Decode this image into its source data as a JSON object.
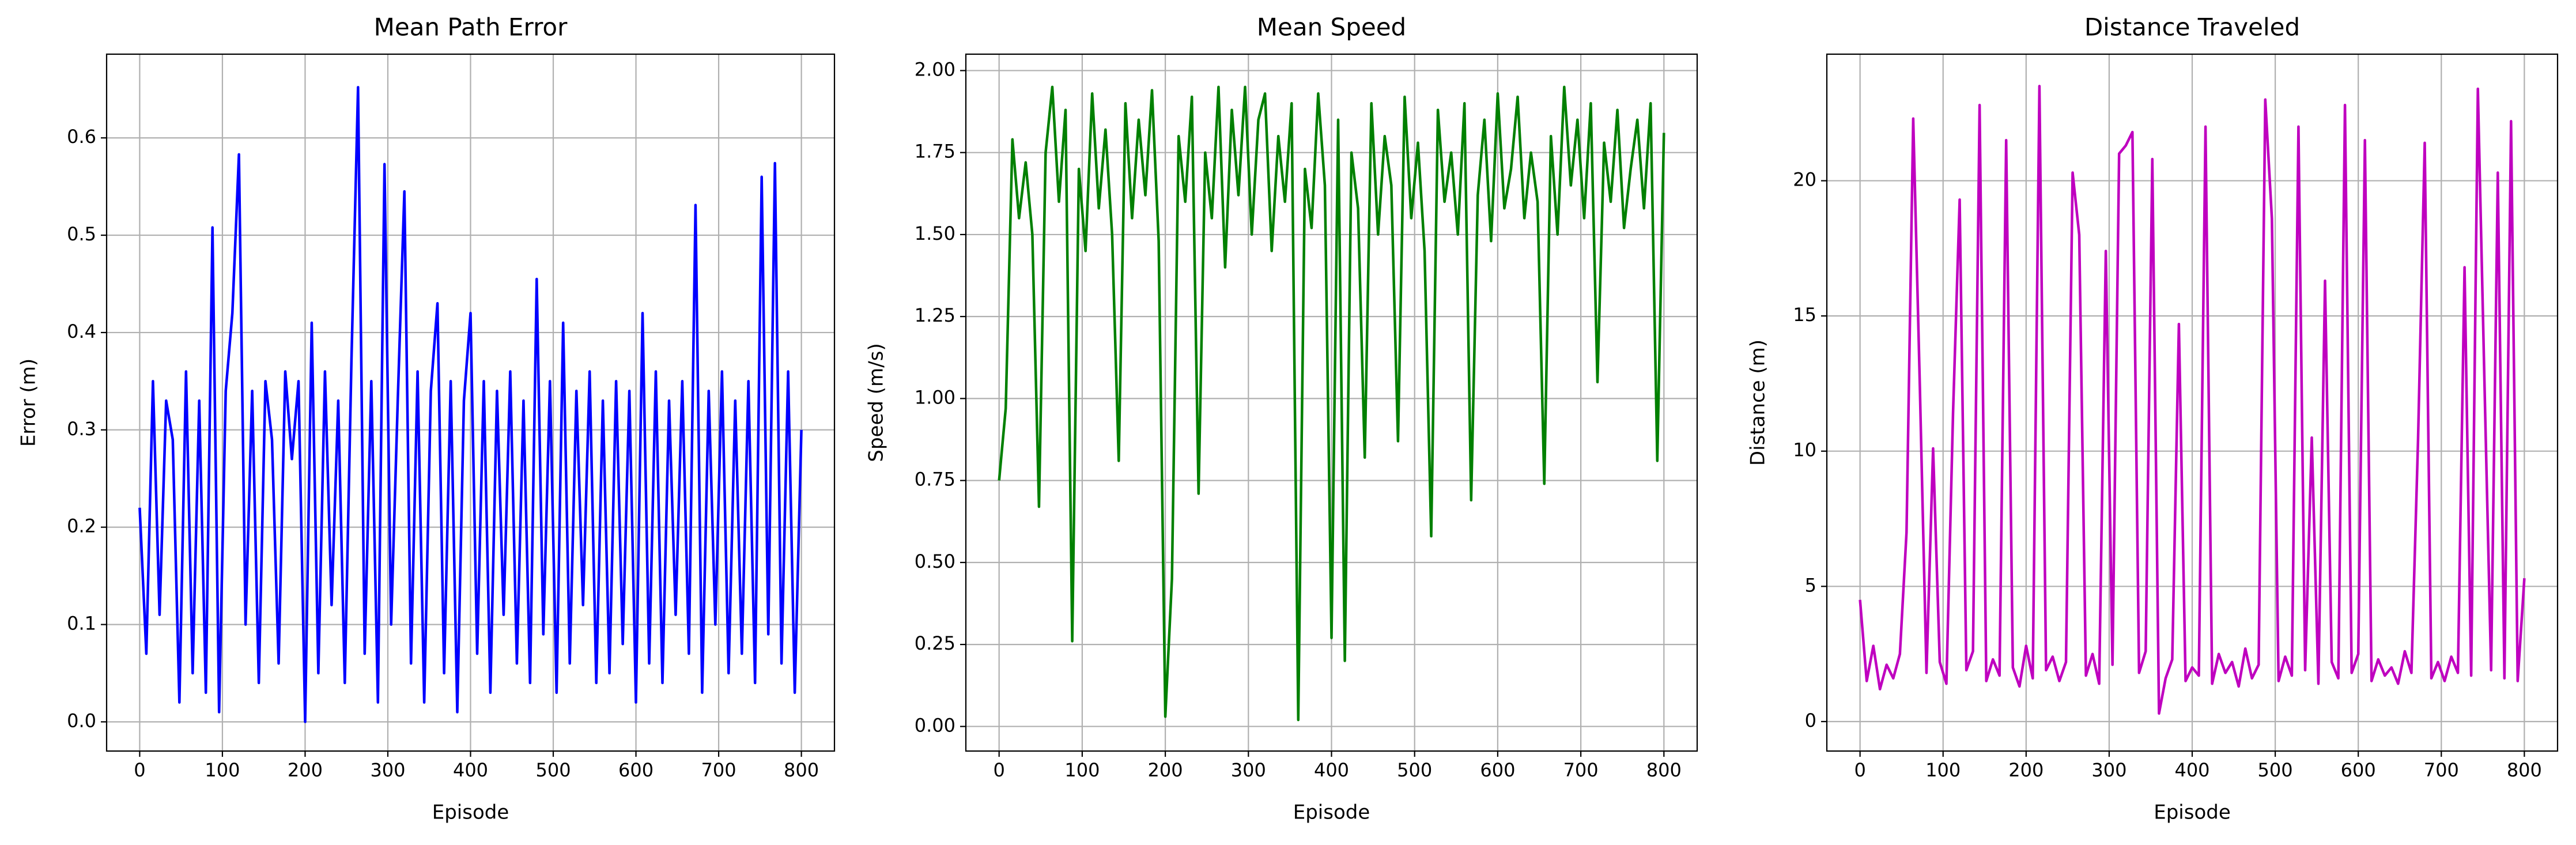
{
  "chart_data": [
    {
      "type": "line",
      "title": "Mean Path Error",
      "xlabel": "Episode",
      "ylabel": "Error (m)",
      "grid": true,
      "xlim": [
        -40,
        840
      ],
      "ylim": [
        -0.03,
        0.686
      ],
      "xticks": [
        0,
        100,
        200,
        300,
        400,
        500,
        600,
        700,
        800
      ],
      "yticks": [
        {
          "value": 0,
          "label": "0.0"
        },
        0.1,
        0.2,
        0.3,
        0.4,
        0.5,
        0.6
      ],
      "x": [
        0,
        8,
        16,
        24,
        32,
        40,
        48,
        56,
        64,
        72,
        80,
        88,
        96,
        104,
        112,
        120,
        128,
        136,
        144,
        152,
        160,
        168,
        176,
        184,
        192,
        200,
        208,
        216,
        224,
        232,
        240,
        248,
        256,
        264,
        272,
        280,
        288,
        296,
        304,
        312,
        320,
        328,
        336,
        344,
        352,
        360,
        368,
        376,
        384,
        392,
        400,
        408,
        416,
        424,
        432,
        440,
        448,
        456,
        464,
        472,
        480,
        488,
        496,
        504,
        512,
        520,
        528,
        536,
        544,
        552,
        560,
        568,
        576,
        584,
        592,
        600,
        608,
        616,
        624,
        632,
        640,
        648,
        656,
        664,
        672,
        680,
        688,
        696,
        704,
        712,
        720,
        728,
        736,
        744,
        752,
        760,
        768,
        776,
        784,
        792,
        800
      ],
      "series": [
        {
          "color": "#0000ff",
          "values": [
            0.22,
            0.07,
            0.35,
            0.11,
            0.33,
            0.29,
            0.02,
            0.36,
            0.05,
            0.33,
            0.03,
            0.508,
            0.01,
            0.34,
            0.42,
            0.583,
            0.1,
            0.34,
            0.04,
            0.35,
            0.29,
            0.06,
            0.36,
            0.27,
            0.35,
            0.0,
            0.41,
            0.05,
            0.36,
            0.12,
            0.33,
            0.04,
            0.37,
            0.652,
            0.07,
            0.35,
            0.02,
            0.573,
            0.1,
            0.33,
            0.545,
            0.06,
            0.36,
            0.02,
            0.34,
            0.43,
            0.05,
            0.35,
            0.01,
            0.33,
            0.42,
            0.07,
            0.35,
            0.03,
            0.34,
            0.11,
            0.36,
            0.06,
            0.33,
            0.04,
            0.455,
            0.09,
            0.35,
            0.03,
            0.41,
            0.06,
            0.34,
            0.12,
            0.36,
            0.04,
            0.33,
            0.05,
            0.35,
            0.08,
            0.34,
            0.02,
            0.42,
            0.06,
            0.36,
            0.04,
            0.33,
            0.11,
            0.35,
            0.07,
            0.531,
            0.03,
            0.34,
            0.1,
            0.36,
            0.05,
            0.33,
            0.07,
            0.35,
            0.04,
            0.56,
            0.09,
            0.574,
            0.06,
            0.36,
            0.03,
            0.3
          ]
        }
      ]
    },
    {
      "type": "line",
      "title": "Mean Speed",
      "xlabel": "Episode",
      "ylabel": "Speed (m/s)",
      "grid": true,
      "xlim": [
        -40,
        840
      ],
      "ylim": [
        -0.075,
        2.05
      ],
      "xticks": [
        0,
        100,
        200,
        300,
        400,
        500,
        600,
        700,
        800
      ],
      "yticks": [
        {
          "value": 0,
          "label": "0.00"
        },
        0.25,
        {
          "value": 0.5,
          "label": "0.50"
        },
        0.75,
        {
          "value": 1,
          "label": "1.00"
        },
        1.25,
        {
          "value": 1.5,
          "label": "1.50"
        },
        1.75,
        {
          "value": 2,
          "label": "2.00"
        }
      ],
      "x": [
        0,
        8,
        16,
        24,
        32,
        40,
        48,
        56,
        64,
        72,
        80,
        88,
        96,
        104,
        112,
        120,
        128,
        136,
        144,
        152,
        160,
        168,
        176,
        184,
        192,
        200,
        208,
        216,
        224,
        232,
        240,
        248,
        256,
        264,
        272,
        280,
        288,
        296,
        304,
        312,
        320,
        328,
        336,
        344,
        352,
        360,
        368,
        376,
        384,
        392,
        400,
        408,
        416,
        424,
        432,
        440,
        448,
        456,
        464,
        472,
        480,
        488,
        496,
        504,
        512,
        520,
        528,
        536,
        544,
        552,
        560,
        568,
        576,
        584,
        592,
        600,
        608,
        616,
        624,
        632,
        640,
        648,
        656,
        664,
        672,
        680,
        688,
        696,
        704,
        712,
        720,
        728,
        736,
        744,
        752,
        760,
        768,
        776,
        784,
        792,
        800
      ],
      "series": [
        {
          "color": "#008000",
          "values": [
            0.75,
            0.97,
            1.79,
            1.55,
            1.72,
            1.5,
            0.67,
            1.75,
            1.95,
            1.6,
            1.88,
            0.26,
            1.7,
            1.45,
            1.93,
            1.58,
            1.82,
            1.5,
            0.81,
            1.9,
            1.55,
            1.85,
            1.62,
            1.94,
            1.48,
            0.03,
            0.45,
            1.8,
            1.6,
            1.92,
            0.71,
            1.75,
            1.55,
            1.95,
            1.4,
            1.88,
            1.62,
            1.95,
            1.5,
            1.85,
            1.93,
            1.45,
            1.8,
            1.6,
            1.9,
            0.02,
            1.7,
            1.52,
            1.93,
            1.65,
            0.27,
            1.85,
            0.2,
            1.75,
            1.58,
            0.82,
            1.9,
            1.5,
            1.8,
            1.65,
            0.87,
            1.92,
            1.55,
            1.78,
            1.45,
            0.58,
            1.88,
            1.6,
            1.75,
            1.5,
            1.9,
            0.69,
            1.62,
            1.85,
            1.48,
            1.93,
            1.58,
            1.7,
            1.92,
            1.55,
            1.75,
            1.6,
            0.74,
            1.8,
            1.5,
            1.95,
            1.65,
            1.85,
            1.55,
            1.9,
            1.05,
            1.78,
            1.6,
            1.88,
            1.52,
            1.7,
            1.85,
            1.58,
            1.9,
            0.81,
            1.81
          ]
        }
      ]
    },
    {
      "type": "line",
      "title": "Distance Traveled",
      "xlabel": "Episode",
      "ylabel": "Distance (m)",
      "grid": true,
      "xlim": [
        -40,
        840
      ],
      "ylim": [
        -1.09,
        24.68
      ],
      "xticks": [
        0,
        100,
        200,
        300,
        400,
        500,
        600,
        700,
        800
      ],
      "yticks": [
        0,
        5,
        10,
        15,
        20
      ],
      "x": [
        0,
        8,
        16,
        24,
        32,
        40,
        48,
        56,
        64,
        72,
        80,
        88,
        96,
        104,
        112,
        120,
        128,
        136,
        144,
        152,
        160,
        168,
        176,
        184,
        192,
        200,
        208,
        216,
        224,
        232,
        240,
        248,
        256,
        264,
        272,
        280,
        288,
        296,
        304,
        312,
        320,
        328,
        336,
        344,
        352,
        360,
        368,
        376,
        384,
        392,
        400,
        408,
        416,
        424,
        432,
        440,
        448,
        456,
        464,
        472,
        480,
        488,
        496,
        504,
        512,
        520,
        528,
        536,
        544,
        552,
        560,
        568,
        576,
        584,
        592,
        600,
        608,
        616,
        624,
        632,
        640,
        648,
        656,
        664,
        672,
        680,
        688,
        696,
        704,
        712,
        720,
        728,
        736,
        744,
        752,
        760,
        768,
        776,
        784,
        792,
        800
      ],
      "series": [
        {
          "color": "#bf00bf",
          "values": [
            4.5,
            1.5,
            2.8,
            1.2,
            2.1,
            1.6,
            2.5,
            7.0,
            22.3,
            12.4,
            1.8,
            10.1,
            2.2,
            1.4,
            11.4,
            19.3,
            1.9,
            2.6,
            22.8,
            1.5,
            2.3,
            1.7,
            21.5,
            2.0,
            1.3,
            2.8,
            1.6,
            23.5,
            1.9,
            2.4,
            1.5,
            2.2,
            20.3,
            18.0,
            1.7,
            2.5,
            1.4,
            17.4,
            2.1,
            21.0,
            21.3,
            21.8,
            1.8,
            2.6,
            20.8,
            0.3,
            1.6,
            2.3,
            14.7,
            1.5,
            2.0,
            1.7,
            22.0,
            1.4,
            2.5,
            1.8,
            2.2,
            1.3,
            2.7,
            1.6,
            2.1,
            23.0,
            18.6,
            1.5,
            2.4,
            1.7,
            22.0,
            1.9,
            10.5,
            1.4,
            16.3,
            2.2,
            1.6,
            22.8,
            1.8,
            2.5,
            21.5,
            1.5,
            2.3,
            1.7,
            2.0,
            1.4,
            2.6,
            1.8,
            10.4,
            21.4,
            1.6,
            2.2,
            1.5,
            2.4,
            1.8,
            16.8,
            1.7,
            23.4,
            12.5,
            1.9,
            20.3,
            1.6,
            22.2,
            1.5,
            5.3
          ]
        }
      ]
    }
  ]
}
